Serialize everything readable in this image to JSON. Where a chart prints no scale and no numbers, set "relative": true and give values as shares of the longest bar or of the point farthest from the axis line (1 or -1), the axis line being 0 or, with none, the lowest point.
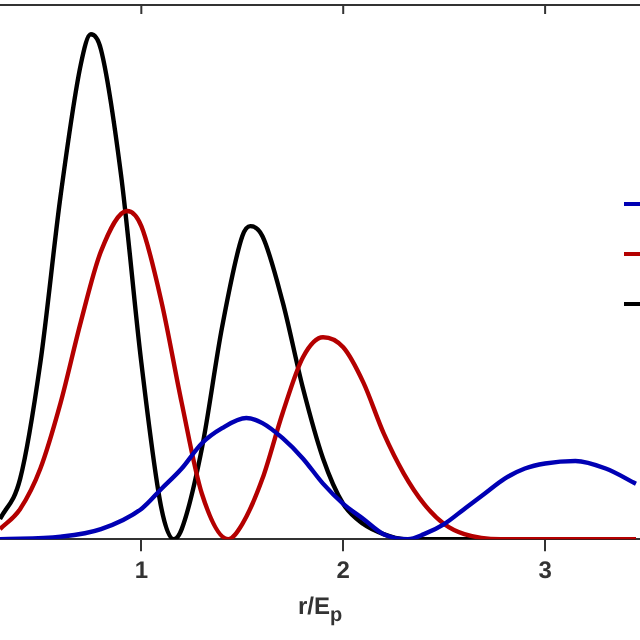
{
  "chart_data": {
    "type": "line",
    "xlabel": "r/E$_{p}$",
    "relative": true,
    "xlim": [
      0.3,
      3.47
    ],
    "xticks": [
      1,
      2,
      3
    ],
    "grid": false,
    "marker": "none",
    "line_style": "solid",
    "series": [
      {
        "color": "#0000b4",
        "x": [
          0.3,
          0.6,
          0.8,
          1.0,
          1.1,
          1.2,
          1.3,
          1.4,
          1.52,
          1.6,
          1.7,
          1.8,
          1.9,
          2.0,
          2.1,
          2.2,
          2.32,
          2.4,
          2.5,
          2.6,
          2.7,
          2.8,
          2.9,
          3.0,
          3.15,
          3.3,
          3.45
        ],
        "values": [
          0,
          0.005,
          0.02,
          0.06,
          0.1,
          0.14,
          0.19,
          0.22,
          0.24,
          0.23,
          0.2,
          0.16,
          0.11,
          0.07,
          0.04,
          0.01,
          0,
          0.01,
          0.03,
          0.06,
          0.09,
          0.12,
          0.14,
          0.15,
          0.155,
          0.14,
          0.11
        ]
      },
      {
        "color": "#b40000",
        "x": [
          0.3,
          0.4,
          0.5,
          0.6,
          0.7,
          0.8,
          0.93,
          1.0,
          1.1,
          1.2,
          1.3,
          1.43,
          1.5,
          1.6,
          1.7,
          1.8,
          1.9,
          2.0,
          2.1,
          2.2,
          2.3,
          2.4,
          2.5,
          2.6,
          2.78,
          3.0,
          3.45
        ],
        "values": [
          0.02,
          0.06,
          0.14,
          0.27,
          0.43,
          0.57,
          0.65,
          0.62,
          0.47,
          0.27,
          0.09,
          0,
          0.03,
          0.12,
          0.25,
          0.36,
          0.4,
          0.38,
          0.31,
          0.21,
          0.13,
          0.07,
          0.03,
          0.01,
          0,
          0,
          0
        ]
      },
      {
        "color": "#000000",
        "x": [
          0.3,
          0.4,
          0.5,
          0.6,
          0.7,
          0.75,
          0.8,
          0.9,
          1.0,
          1.1,
          1.16,
          1.2,
          1.3,
          1.4,
          1.5,
          1.54,
          1.6,
          1.7,
          1.8,
          1.9,
          2.0,
          2.1,
          2.2,
          2.3,
          2.5,
          3.0,
          3.45
        ],
        "values": [
          0.04,
          0.12,
          0.35,
          0.68,
          0.94,
          1,
          0.97,
          0.72,
          0.35,
          0.06,
          0,
          0.02,
          0.18,
          0.42,
          0.6,
          0.62,
          0.6,
          0.47,
          0.3,
          0.16,
          0.07,
          0.03,
          0.01,
          0,
          0,
          0,
          0
        ]
      }
    ]
  }
}
